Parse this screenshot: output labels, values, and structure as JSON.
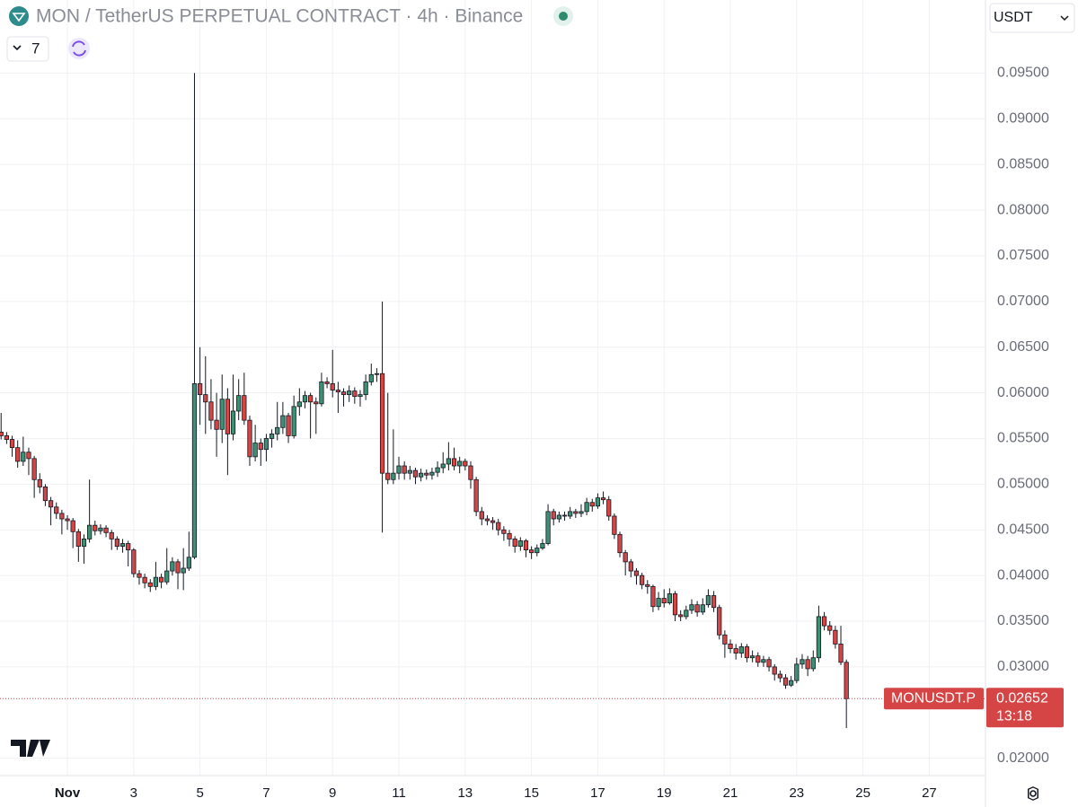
{
  "chart_data": {
    "type": "candlestick",
    "title": "MON / TetherUS PERPETUAL CONTRACT · 4h · Binance",
    "indicator_count": "7",
    "currency": "USDT",
    "symbol_label": "MONUSDT.P",
    "countdown": "13:18",
    "up_color": "#3f8f74",
    "down_color": "#d64545",
    "wick_color": "#131722",
    "grid": true,
    "xlim": [
      -48.8,
      664.7
    ],
    "xticks": [
      {
        "value": 0,
        "label": "Nov"
      },
      {
        "value": 48,
        "label": "3"
      },
      {
        "value": 96,
        "label": "5"
      },
      {
        "value": 144,
        "label": "7"
      },
      {
        "value": 192,
        "label": "9"
      },
      {
        "value": 240,
        "label": "11"
      },
      {
        "value": 288,
        "label": "13"
      },
      {
        "value": 336,
        "label": "15"
      },
      {
        "value": 384,
        "label": "17"
      },
      {
        "value": 432,
        "label": "19"
      },
      {
        "value": 480,
        "label": "21"
      },
      {
        "value": 528,
        "label": "23"
      },
      {
        "value": 576,
        "label": "25"
      },
      {
        "value": 624,
        "label": "27"
      }
    ],
    "ylim": [
      0.0181,
      0.103
    ],
    "yticks": [
      {
        "value": 0.02,
        "label": "0.02000"
      },
      {
        "value": 0.03,
        "label": "0.03000"
      },
      {
        "value": 0.035,
        "label": "0.03500"
      },
      {
        "value": 0.04,
        "label": "0.04000"
      },
      {
        "value": 0.045,
        "label": "0.04500"
      },
      {
        "value": 0.05,
        "label": "0.05000"
      },
      {
        "value": 0.055,
        "label": "0.05500"
      },
      {
        "value": 0.06,
        "label": "0.06000"
      },
      {
        "value": 0.065,
        "label": "0.06500"
      },
      {
        "value": 0.07,
        "label": "0.07000"
      },
      {
        "value": 0.075,
        "label": "0.07500"
      },
      {
        "value": 0.08,
        "label": "0.08000"
      },
      {
        "value": 0.085,
        "label": "0.08500"
      },
      {
        "value": 0.09,
        "label": "0.09000"
      },
      {
        "value": 0.095,
        "label": "0.09500"
      }
    ],
    "x": [
      -48,
      -44,
      -40,
      -36,
      -32,
      -28,
      -24,
      -20,
      -16,
      -12,
      -8,
      -4,
      0,
      4,
      8,
      12,
      16,
      20,
      24,
      28,
      32,
      36,
      40,
      44,
      48,
      52,
      56,
      60,
      64,
      68,
      72,
      76,
      80,
      84,
      88,
      92,
      96,
      100,
      104,
      108,
      112,
      116,
      120,
      124,
      128,
      132,
      136,
      140,
      144,
      148,
      152,
      156,
      160,
      164,
      168,
      172,
      176,
      180,
      184,
      188,
      192,
      196,
      200,
      204,
      208,
      212,
      216,
      220,
      224,
      228,
      232,
      236,
      240,
      244,
      248,
      252,
      256,
      260,
      264,
      268,
      272,
      276,
      280,
      284,
      288,
      292,
      296,
      300,
      304,
      308,
      312,
      316,
      320,
      324,
      328,
      332,
      336,
      340,
      344,
      348,
      352,
      356,
      360,
      364,
      368,
      372,
      376,
      380,
      384,
      388,
      392,
      396,
      400,
      404,
      408,
      412,
      416,
      420,
      424,
      428,
      432,
      436,
      440,
      444,
      448,
      452,
      456,
      460,
      464,
      468,
      472,
      476,
      480,
      484,
      488,
      492,
      496,
      500,
      504,
      508,
      512,
      516,
      520,
      524,
      528,
      532,
      536,
      540,
      544,
      548,
      552,
      556,
      560,
      564
    ],
    "open": [
      0.0557,
      0.0553,
      0.0549,
      0.054,
      0.0525,
      0.0535,
      0.0528,
      0.0505,
      0.0497,
      0.0482,
      0.0475,
      0.0468,
      0.0462,
      0.046,
      0.0448,
      0.0432,
      0.044,
      0.0455,
      0.0449,
      0.0452,
      0.0447,
      0.044,
      0.0432,
      0.0435,
      0.0428,
      0.0402,
      0.0398,
      0.0392,
      0.0388,
      0.0398,
      0.0393,
      0.0405,
      0.0415,
      0.0403,
      0.0408,
      0.042,
      0.061,
      0.0598,
      0.059,
      0.057,
      0.056,
      0.0593,
      0.0555,
      0.058,
      0.0597,
      0.057,
      0.053,
      0.0545,
      0.0538,
      0.055,
      0.0555,
      0.0562,
      0.0575,
      0.0553,
      0.0585,
      0.059,
      0.0597,
      0.059,
      0.0588,
      0.0612,
      0.061,
      0.0603,
      0.0601,
      0.0598,
      0.0602,
      0.0596,
      0.0598,
      0.0612,
      0.062,
      0.0621,
      0.0512,
      0.0505,
      0.0512,
      0.052,
      0.0512,
      0.0515,
      0.0508,
      0.0512,
      0.051,
      0.0513,
      0.0518,
      0.0522,
      0.0528,
      0.052,
      0.0525,
      0.052,
      0.0505,
      0.047,
      0.0462,
      0.046,
      0.0458,
      0.045,
      0.0446,
      0.044,
      0.0432,
      0.0438,
      0.0428,
      0.0425,
      0.043,
      0.0435,
      0.047,
      0.0462,
      0.0466,
      0.0465,
      0.047,
      0.0468,
      0.047,
      0.048,
      0.0476,
      0.0485,
      0.0483,
      0.0465,
      0.0445,
      0.0425,
      0.0415,
      0.0405,
      0.04,
      0.039,
      0.0388,
      0.0366,
      0.0375,
      0.037,
      0.038,
      0.0357,
      0.0355,
      0.0362,
      0.0368,
      0.036,
      0.0368,
      0.0378,
      0.0365,
      0.0335,
      0.0325,
      0.032,
      0.0315,
      0.0322,
      0.031,
      0.0312,
      0.0305,
      0.0308,
      0.03,
      0.0292,
      0.0288,
      0.028,
      0.0285,
      0.0303,
      0.0308,
      0.0298,
      0.031,
      0.0355,
      0.0345,
      0.034,
      0.0325,
      0.0305
    ],
    "high": [
      0.0578,
      0.0557,
      0.0553,
      0.0548,
      0.0552,
      0.054,
      0.0531,
      0.0512,
      0.05,
      0.0486,
      0.048,
      0.0472,
      0.0466,
      0.0463,
      0.0451,
      0.0445,
      0.0505,
      0.046,
      0.0456,
      0.0455,
      0.045,
      0.0443,
      0.044,
      0.0438,
      0.043,
      0.0406,
      0.0402,
      0.0396,
      0.0415,
      0.0402,
      0.043,
      0.042,
      0.0418,
      0.043,
      0.0448,
      0.095,
      0.065,
      0.064,
      0.0615,
      0.06,
      0.062,
      0.0605,
      0.062,
      0.0615,
      0.0622,
      0.0575,
      0.0565,
      0.055,
      0.0555,
      0.056,
      0.059,
      0.059,
      0.0578,
      0.0597,
      0.0605,
      0.0602,
      0.06,
      0.0595,
      0.0622,
      0.0617,
      0.0647,
      0.0612,
      0.0605,
      0.0608,
      0.0606,
      0.0603,
      0.062,
      0.0632,
      0.0627,
      0.07,
      0.06,
      0.056,
      0.053,
      0.0525,
      0.052,
      0.0518,
      0.0517,
      0.0516,
      0.0518,
      0.0525,
      0.0535,
      0.0546,
      0.054,
      0.053,
      0.0528,
      0.0525,
      0.0508,
      0.0475,
      0.0466,
      0.0464,
      0.0462,
      0.0454,
      0.045,
      0.0443,
      0.0442,
      0.044,
      0.0432,
      0.0434,
      0.044,
      0.0478,
      0.0473,
      0.047,
      0.047,
      0.0475,
      0.0473,
      0.0478,
      0.0485,
      0.0484,
      0.049,
      0.0492,
      0.0487,
      0.0468,
      0.0448,
      0.0428,
      0.0418,
      0.0408,
      0.0403,
      0.0395,
      0.039,
      0.0382,
      0.0385,
      0.0386,
      0.0383,
      0.0362,
      0.0367,
      0.0374,
      0.0372,
      0.0375,
      0.0385,
      0.0383,
      0.0368,
      0.034,
      0.033,
      0.0325,
      0.0326,
      0.0325,
      0.0318,
      0.0316,
      0.0312,
      0.0311,
      0.0303,
      0.0296,
      0.0292,
      0.029,
      0.031,
      0.0314,
      0.0312,
      0.0318,
      0.0367,
      0.036,
      0.035,
      0.0345,
      0.0345,
      0.0308
    ],
    "low": [
      0.0549,
      0.0544,
      0.053,
      0.0518,
      0.052,
      0.051,
      0.0485,
      0.049,
      0.0476,
      0.0455,
      0.0462,
      0.0445,
      0.045,
      0.043,
      0.0415,
      0.0413,
      0.0436,
      0.0444,
      0.0445,
      0.0442,
      0.0428,
      0.0428,
      0.0425,
      0.041,
      0.0398,
      0.039,
      0.0386,
      0.0382,
      0.0384,
      0.0386,
      0.039,
      0.04,
      0.0385,
      0.0384,
      0.0405,
      0.0418,
      0.0565,
      0.0555,
      0.056,
      0.053,
      0.0545,
      0.051,
      0.0548,
      0.057,
      0.0565,
      0.052,
      0.0525,
      0.052,
      0.0525,
      0.054,
      0.0548,
      0.0555,
      0.0545,
      0.055,
      0.0575,
      0.0583,
      0.055,
      0.0555,
      0.0585,
      0.0605,
      0.0595,
      0.0578,
      0.0585,
      0.059,
      0.0588,
      0.0585,
      0.0592,
      0.0608,
      0.0612,
      0.0447,
      0.05,
      0.05,
      0.0505,
      0.0505,
      0.0505,
      0.05,
      0.0503,
      0.0505,
      0.0505,
      0.0508,
      0.0512,
      0.0515,
      0.0515,
      0.0512,
      0.0515,
      0.0495,
      0.0465,
      0.0455,
      0.0455,
      0.045,
      0.0444,
      0.0438,
      0.0432,
      0.0425,
      0.0427,
      0.042,
      0.0418,
      0.0421,
      0.0428,
      0.0433,
      0.0455,
      0.0458,
      0.046,
      0.0462,
      0.0463,
      0.0464,
      0.0466,
      0.047,
      0.0473,
      0.0478,
      0.046,
      0.044,
      0.042,
      0.04,
      0.0398,
      0.039,
      0.0385,
      0.038,
      0.036,
      0.0362,
      0.0365,
      0.0368,
      0.035,
      0.035,
      0.0352,
      0.0358,
      0.0355,
      0.0357,
      0.0365,
      0.036,
      0.033,
      0.031,
      0.0315,
      0.0308,
      0.031,
      0.0305,
      0.0305,
      0.03,
      0.03,
      0.0295,
      0.0285,
      0.0283,
      0.0276,
      0.0278,
      0.0282,
      0.0298,
      0.029,
      0.0295,
      0.0305,
      0.034,
      0.0335,
      0.032,
      0.0302,
      0.0233
    ],
    "close": [
      0.0553,
      0.0549,
      0.054,
      0.0525,
      0.0535,
      0.0528,
      0.0505,
      0.0497,
      0.0482,
      0.0475,
      0.0468,
      0.0462,
      0.046,
      0.0448,
      0.0432,
      0.044,
      0.0455,
      0.0449,
      0.0452,
      0.0447,
      0.044,
      0.0432,
      0.0435,
      0.0428,
      0.0402,
      0.0398,
      0.0392,
      0.0388,
      0.0398,
      0.0393,
      0.0405,
      0.0415,
      0.0403,
      0.0408,
      0.042,
      0.061,
      0.0598,
      0.059,
      0.057,
      0.056,
      0.0593,
      0.0555,
      0.058,
      0.0597,
      0.057,
      0.053,
      0.0545,
      0.0538,
      0.055,
      0.0555,
      0.0562,
      0.0575,
      0.0553,
      0.0585,
      0.059,
      0.0597,
      0.059,
      0.0588,
      0.0612,
      0.061,
      0.0603,
      0.0601,
      0.0598,
      0.0602,
      0.0596,
      0.0598,
      0.0612,
      0.062,
      0.0621,
      0.0512,
      0.0505,
      0.0512,
      0.052,
      0.0512,
      0.0515,
      0.0508,
      0.0512,
      0.051,
      0.0513,
      0.0518,
      0.0522,
      0.0528,
      0.052,
      0.0525,
      0.052,
      0.0505,
      0.047,
      0.0462,
      0.046,
      0.0458,
      0.045,
      0.0446,
      0.044,
      0.0432,
      0.0438,
      0.0428,
      0.0425,
      0.043,
      0.0435,
      0.047,
      0.0462,
      0.0466,
      0.0465,
      0.047,
      0.0468,
      0.047,
      0.048,
      0.0476,
      0.0485,
      0.0483,
      0.0465,
      0.0445,
      0.0425,
      0.0415,
      0.0405,
      0.04,
      0.039,
      0.0388,
      0.0366,
      0.0375,
      0.037,
      0.038,
      0.0357,
      0.0355,
      0.0362,
      0.0368,
      0.036,
      0.0368,
      0.0378,
      0.0365,
      0.0335,
      0.0325,
      0.032,
      0.0315,
      0.0322,
      0.031,
      0.0312,
      0.0305,
      0.0308,
      0.03,
      0.0292,
      0.0288,
      0.028,
      0.0285,
      0.0303,
      0.0308,
      0.0298,
      0.031,
      0.0355,
      0.0345,
      0.034,
      0.0325,
      0.0305,
      0.02652
    ]
  }
}
